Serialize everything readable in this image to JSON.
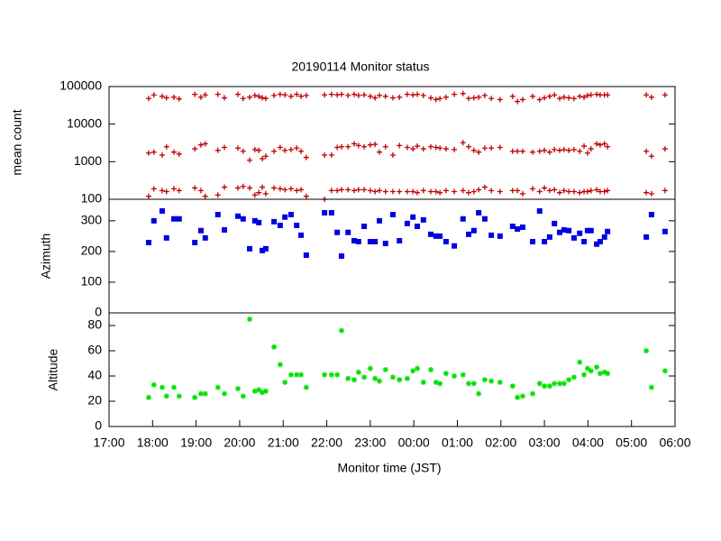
{
  "chart_data": [
    {
      "type": "scatter",
      "title": "20190114 Monitor status",
      "ylabel": "mean count",
      "yscale": "log",
      "xlim": [
        17,
        30
      ],
      "ylim": [
        100,
        100000
      ],
      "yticks": [
        100,
        1000,
        10000,
        100000
      ],
      "marker": "plus",
      "x": [
        17.91,
        18.03,
        18.22,
        18.32,
        18.49,
        18.61,
        18.97,
        19.11,
        19.21,
        19.5,
        19.65,
        19.96,
        20.08,
        20.23,
        20.35,
        20.44,
        20.52,
        20.6,
        20.79,
        20.93,
        21.04,
        21.18,
        21.31,
        21.41,
        21.53,
        21.95,
        22.11,
        22.24,
        22.34,
        22.49,
        22.63,
        22.73,
        22.86,
        23.0,
        23.11,
        23.21,
        23.35,
        23.52,
        23.67,
        23.85,
        23.98,
        24.08,
        24.22,
        24.39,
        24.51,
        24.6,
        24.74,
        24.93,
        25.13,
        25.26,
        25.38,
        25.49,
        25.63,
        25.78,
        25.98,
        26.27,
        26.38,
        26.5,
        26.73,
        26.89,
        27.0,
        27.12,
        27.23,
        27.35,
        27.45,
        27.56,
        27.68,
        27.81,
        27.91,
        27.99,
        28.07,
        28.2,
        28.28,
        28.38,
        28.45,
        29.34,
        29.46,
        29.77
      ],
      "series": [
        {
          "color": "#c00000",
          "values": [
            48000,
            60000,
            55000,
            50000,
            52000,
            47000,
            62000,
            52000,
            60000,
            62000,
            50000,
            62000,
            48000,
            52000,
            58000,
            55000,
            50000,
            48000,
            58000,
            62000,
            60000,
            55000,
            62000,
            55000,
            58000,
            60000,
            62000,
            60000,
            62000,
            58000,
            62000,
            58000,
            60000,
            55000,
            50000,
            58000,
            55000,
            50000,
            52000,
            62000,
            60000,
            62000,
            58000,
            50000,
            45000,
            48000,
            52000,
            62000,
            65000,
            48000,
            50000,
            52000,
            58000,
            48000,
            45000,
            55000,
            40000,
            45000,
            55000,
            45000,
            50000,
            55000,
            60000,
            48000,
            52000,
            50000,
            48000,
            55000,
            52000,
            58000,
            60000,
            62000,
            60000,
            60000,
            60000,
            60000,
            52000,
            60000
          ]
        },
        {
          "color": "#c00000",
          "values": [
            1700,
            1800,
            1500,
            2500,
            1800,
            1600,
            2200,
            2800,
            3000,
            2000,
            2400,
            2300,
            1900,
            1100,
            2100,
            2000,
            1200,
            1400,
            1900,
            2400,
            2000,
            2100,
            2300,
            1900,
            1300,
            1500,
            1500,
            2400,
            2500,
            2500,
            3000,
            2700,
            2500,
            2800,
            2900,
            1800,
            2500,
            1500,
            2700,
            2400,
            2200,
            2600,
            2200,
            2500,
            2400,
            2300,
            2200,
            2100,
            3200,
            2500,
            2000,
            1800,
            2300,
            2300,
            2400,
            1900,
            1900,
            1900,
            1800,
            1900,
            2000,
            1800,
            2100,
            2000,
            2100,
            2000,
            2100,
            1900,
            2600,
            1700,
            2200,
            3000,
            2800,
            3000,
            2500,
            1900,
            1400,
            2200
          ]
        },
        {
          "color": "#c00000",
          "values": [
            120,
            190,
            170,
            160,
            190,
            170,
            200,
            170,
            120,
            130,
            210,
            200,
            220,
            200,
            130,
            150,
            210,
            140,
            200,
            190,
            180,
            190,
            170,
            180,
            120,
            100,
            170,
            170,
            180,
            180,
            170,
            180,
            180,
            170,
            160,
            170,
            160,
            160,
            160,
            160,
            160,
            150,
            170,
            160,
            160,
            150,
            170,
            160,
            170,
            150,
            160,
            180,
            210,
            170,
            160,
            170,
            170,
            140,
            190,
            160,
            200,
            170,
            180,
            150,
            170,
            160,
            160,
            150,
            160,
            160,
            170,
            180,
            160,
            160,
            170,
            150,
            140,
            170
          ]
        }
      ]
    },
    {
      "type": "scatter",
      "ylabel": "Azimuth",
      "xlim": [
        17,
        30
      ],
      "ylim": [
        0,
        370
      ],
      "yticks": [
        0,
        100,
        200,
        300
      ],
      "marker": "square",
      "x": [
        17.91,
        18.03,
        18.22,
        18.32,
        18.49,
        18.61,
        18.97,
        19.11,
        19.21,
        19.5,
        19.65,
        19.96,
        20.08,
        20.23,
        20.35,
        20.44,
        20.52,
        20.6,
        20.79,
        20.93,
        21.04,
        21.18,
        21.31,
        21.41,
        21.53,
        21.95,
        22.11,
        22.24,
        22.34,
        22.49,
        22.63,
        22.73,
        22.86,
        23.0,
        23.11,
        23.21,
        23.35,
        23.52,
        23.67,
        23.85,
        23.98,
        24.08,
        24.22,
        24.39,
        24.51,
        24.6,
        24.74,
        24.93,
        25.13,
        25.26,
        25.38,
        25.49,
        25.63,
        25.78,
        25.98,
        26.27,
        26.38,
        26.5,
        26.73,
        26.89,
        27.0,
        27.12,
        27.23,
        27.35,
        27.45,
        27.56,
        27.68,
        27.81,
        27.91,
        27.99,
        28.07,
        28.2,
        28.28,
        28.38,
        28.45,
        29.34,
        29.46,
        29.77
      ],
      "series": [
        {
          "color": "#0000e0",
          "values": [
            229,
            300,
            332,
            244,
            306,
            306,
            229,
            268,
            244,
            320,
            270,
            315,
            306,
            209,
            300,
            294,
            203,
            209,
            297,
            285,
            312,
            320,
            285,
            253,
            188,
            326,
            326,
            262,
            185,
            262,
            235,
            232,
            282,
            232,
            232,
            300,
            226,
            320,
            235,
            291,
            312,
            282,
            303,
            256,
            250,
            250,
            232,
            218,
            306,
            256,
            268,
            326,
            306,
            253,
            250,
            282,
            273,
            279,
            232,
            332,
            232,
            247,
            291,
            262,
            270,
            268,
            244,
            259,
            232,
            268,
            268,
            224,
            232,
            247,
            265,
            247,
            320,
            265
          ]
        }
      ]
    },
    {
      "type": "scatter",
      "ylabel": "Altitude",
      "xlabel": "Monitor time (JST)",
      "xlim": [
        17,
        30
      ],
      "ylim": [
        0,
        90
      ],
      "yticks": [
        0,
        20,
        40,
        60,
        80
      ],
      "marker": "star",
      "xticks": [
        {
          "value": 17,
          "label": "17:00"
        },
        {
          "value": 18,
          "label": "18:00"
        },
        {
          "value": 19,
          "label": "19:00"
        },
        {
          "value": 20,
          "label": "20:00"
        },
        {
          "value": 21,
          "label": "21:00"
        },
        {
          "value": 22,
          "label": "22:00"
        },
        {
          "value": 23,
          "label": "23:00"
        },
        {
          "value": 24,
          "label": "00:00"
        },
        {
          "value": 25,
          "label": "01:00"
        },
        {
          "value": 26,
          "label": "02:00"
        },
        {
          "value": 27,
          "label": "03:00"
        },
        {
          "value": 28,
          "label": "04:00"
        },
        {
          "value": 29,
          "label": "05:00"
        },
        {
          "value": 30,
          "label": "06:00"
        }
      ],
      "x": [
        17.91,
        18.03,
        18.22,
        18.32,
        18.49,
        18.61,
        18.97,
        19.11,
        19.21,
        19.5,
        19.65,
        19.96,
        20.08,
        20.23,
        20.35,
        20.44,
        20.52,
        20.6,
        20.79,
        20.93,
        21.04,
        21.18,
        21.31,
        21.41,
        21.53,
        21.95,
        22.11,
        22.24,
        22.34,
        22.49,
        22.63,
        22.73,
        22.86,
        23.0,
        23.11,
        23.21,
        23.35,
        23.52,
        23.67,
        23.85,
        23.98,
        24.08,
        24.22,
        24.39,
        24.51,
        24.6,
        24.74,
        24.93,
        25.13,
        25.26,
        25.38,
        25.49,
        25.63,
        25.78,
        25.98,
        26.27,
        26.38,
        26.5,
        26.73,
        26.89,
        27.0,
        27.12,
        27.23,
        27.35,
        27.45,
        27.56,
        27.68,
        27.81,
        27.91,
        27.99,
        28.07,
        28.2,
        28.28,
        28.38,
        28.45,
        29.34,
        29.46,
        29.77
      ],
      "series": [
        {
          "color": "#00e000",
          "values": [
            23,
            33,
            31,
            24,
            31,
            24,
            23,
            26,
            26,
            31,
            26,
            30,
            24,
            85,
            28,
            29,
            27,
            28,
            63,
            49,
            35,
            41,
            41,
            41,
            31,
            41,
            41,
            41,
            76,
            38,
            37,
            43,
            39,
            46,
            38,
            36,
            45,
            39,
            37,
            38,
            44,
            46,
            35,
            45,
            35,
            34,
            42,
            40,
            41,
            34,
            34,
            26,
            37,
            36,
            35,
            32,
            23,
            24,
            26,
            34,
            32,
            32,
            34,
            34,
            34,
            37,
            39,
            51,
            41,
            46,
            44,
            47,
            42,
            43,
            42,
            60,
            31,
            44
          ]
        }
      ]
    }
  ]
}
